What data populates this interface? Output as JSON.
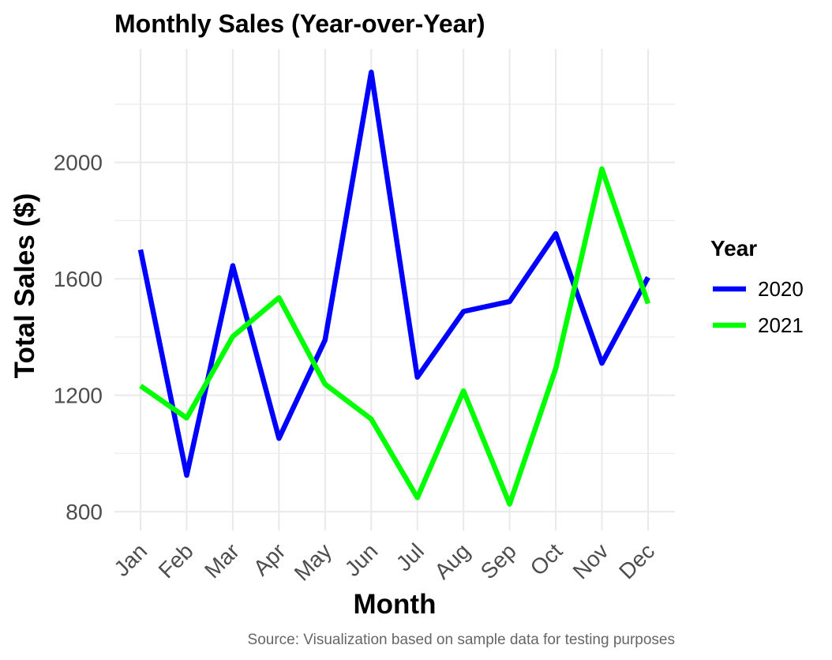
{
  "chart_data": {
    "type": "line",
    "title": "Monthly Sales (Year-over-Year)",
    "xlabel": "Month",
    "ylabel": "Total Sales ($)",
    "caption": "Source: Visualization based on sample data for testing purposes",
    "categories": [
      "Jan",
      "Feb",
      "Mar",
      "Apr",
      "May",
      "Jun",
      "Jul",
      "Aug",
      "Sep",
      "Oct",
      "Nov",
      "Dec"
    ],
    "yticks": [
      800,
      1200,
      1600,
      2000
    ],
    "ylim": [
      735,
      2390
    ],
    "grid": true,
    "legend": {
      "title": "Year",
      "position": "right"
    },
    "series": [
      {
        "name": "2020",
        "color": "#0000ff",
        "values": [
          1700,
          925,
          1645,
          1052,
          1390,
          2310,
          1262,
          1488,
          1522,
          1755,
          1310,
          1605
        ]
      },
      {
        "name": "2021",
        "color": "#00ff00",
        "values": [
          1232,
          1122,
          1402,
          1535,
          1238,
          1118,
          848,
          1215,
          826,
          1292,
          1978,
          1515
        ]
      }
    ]
  }
}
